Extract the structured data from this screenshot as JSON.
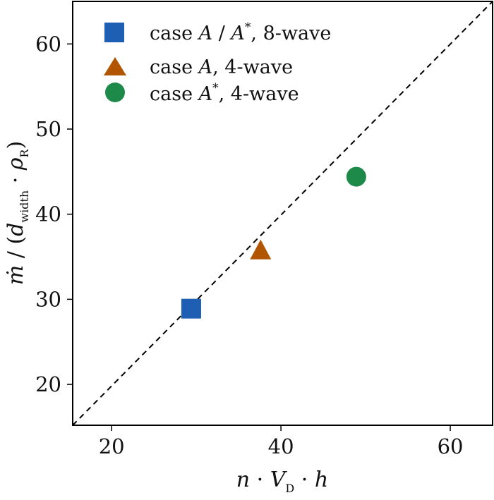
{
  "chart_data": {
    "type": "scatter",
    "xlabel": "n · V_D · h",
    "ylabel": "ṁ / (d_width · ρ_R)",
    "xlim": [
      15.4,
      65
    ],
    "ylim": [
      15.2,
      65
    ],
    "xticks": [
      20,
      40,
      60
    ],
    "yticks": [
      20,
      30,
      40,
      50,
      60
    ],
    "grid": false,
    "legend_position": "top-left",
    "reference_line": {
      "style": "dashed",
      "color": "#000000",
      "from": [
        15.4,
        15.2
      ],
      "to": [
        65,
        65
      ]
    },
    "series": [
      {
        "name": "case A / A*, 8-wave",
        "marker": "square",
        "color": "#1f5fb3",
        "points": [
          {
            "x": 29.4,
            "y": 28.9
          }
        ]
      },
      {
        "name": "case A, 4-wave",
        "marker": "triangle",
        "color": "#b25500",
        "points": [
          {
            "x": 37.6,
            "y": 35.6
          }
        ]
      },
      {
        "name": "case A*, 4-wave",
        "marker": "circle",
        "color": "#1e8a4a",
        "points": [
          {
            "x": 48.9,
            "y": 44.4
          }
        ]
      }
    ]
  }
}
